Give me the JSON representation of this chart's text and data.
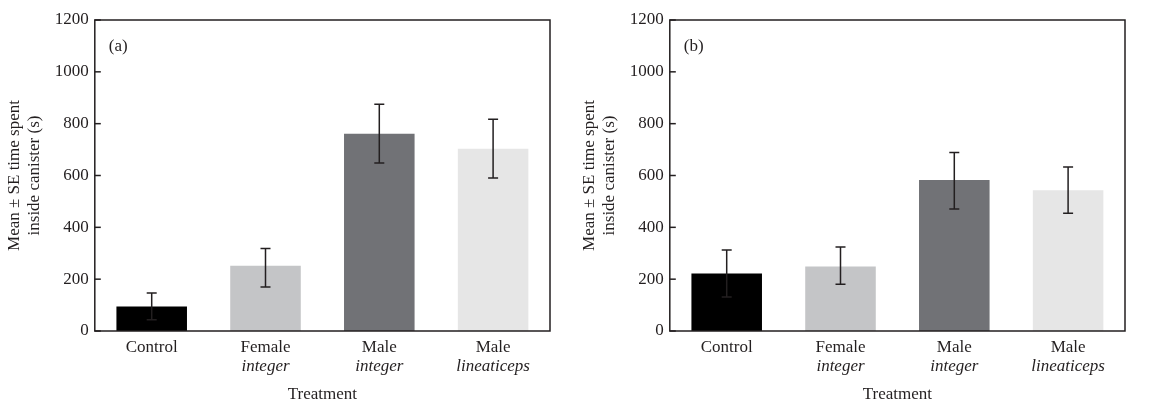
{
  "chart_data": [
    {
      "type": "bar",
      "xlabel": "Treatment",
      "ylabel": "Mean ± SE time spent inside canister (s)",
      "annotations": [
        "(a)"
      ],
      "categories": [
        "Control",
        "Female\ninteger",
        "Male\ninteger",
        "Male\nlineaticeps"
      ],
      "values": [
        95,
        252,
        761,
        703
      ],
      "colors": [
        "#000000",
        "#c4c5c7",
        "#717276",
        "#e6e6e6"
      ],
      "errors": [
        52,
        [
          170,
          318
        ],
        [
          648,
          875
        ],
        [
          590,
          817
        ]
      ],
      "ylim": [
        0,
        1200
      ],
      "yticks": [
        0,
        200,
        400,
        600,
        800,
        1000,
        1200
      ],
      "grid": false,
      "legend": false
    },
    {
      "type": "bar",
      "xlabel": "Treatment",
      "ylabel": "Mean ± SE time spent inside canister (s)",
      "annotations": [
        "(b)"
      ],
      "categories": [
        "Control",
        "Female\ninteger",
        "Male\ninteger",
        "Male\nlineaticeps"
      ],
      "values": [
        222,
        249,
        583,
        543
      ],
      "colors": [
        "#000000",
        "#c4c5c7",
        "#717276",
        "#e6e6e6"
      ],
      "errors": [
        91,
        [
          180,
          324
        ],
        [
          471,
          689
        ],
        [
          454,
          633
        ]
      ],
      "ylim": [
        0,
        1200
      ],
      "yticks": [
        0,
        200,
        400,
        600,
        800,
        1000,
        1200
      ],
      "grid": false,
      "legend": false
    }
  ]
}
